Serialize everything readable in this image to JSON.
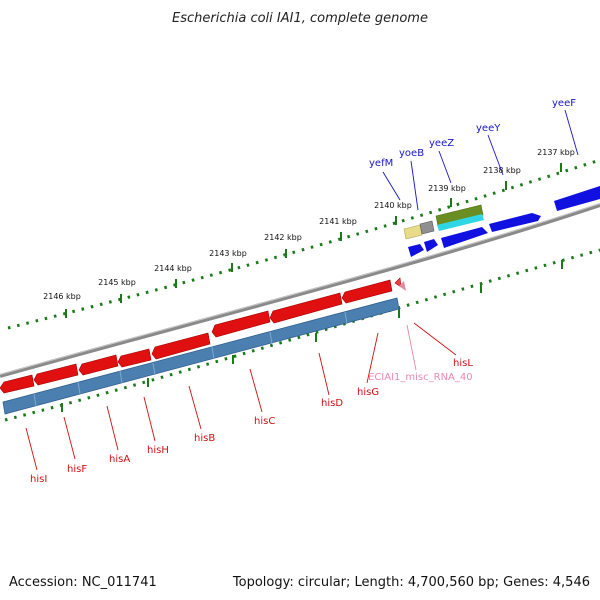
{
  "title": "Escherichia coli IAI1, complete genome",
  "footer": {
    "accession": "Accession: NC_011741",
    "summary": "Topology: circular; Length: 4,700,560 bp; Genes: 4,546"
  },
  "colors": {
    "backbone": "#8a8a8a",
    "ticks": "#1a7a1a",
    "cds_reverse": "#e01010",
    "gene_reverse": "#4a7fb0",
    "cds_forward": "#1010e0",
    "misc_rna": "#e5899f"
  },
  "scale_labels": [
    "2146 kbp",
    "2145 kbp",
    "2144 kbp",
    "2143 kbp",
    "2142 kbp",
    "2141 kbp",
    "2140 kbp",
    "2139 kbp",
    "2138 kbp",
    "2137 kbp"
  ],
  "genes": {
    "reverse": [
      "hisI",
      "hisF",
      "hisA",
      "hisH",
      "hisB",
      "hisC",
      "hisD",
      "hisG",
      "hisL"
    ],
    "misc": "ECIAI1_misc_RNA_40",
    "forward": [
      "yefM",
      "yoeB",
      "yeeZ",
      "yeeY",
      "yeeF"
    ]
  }
}
